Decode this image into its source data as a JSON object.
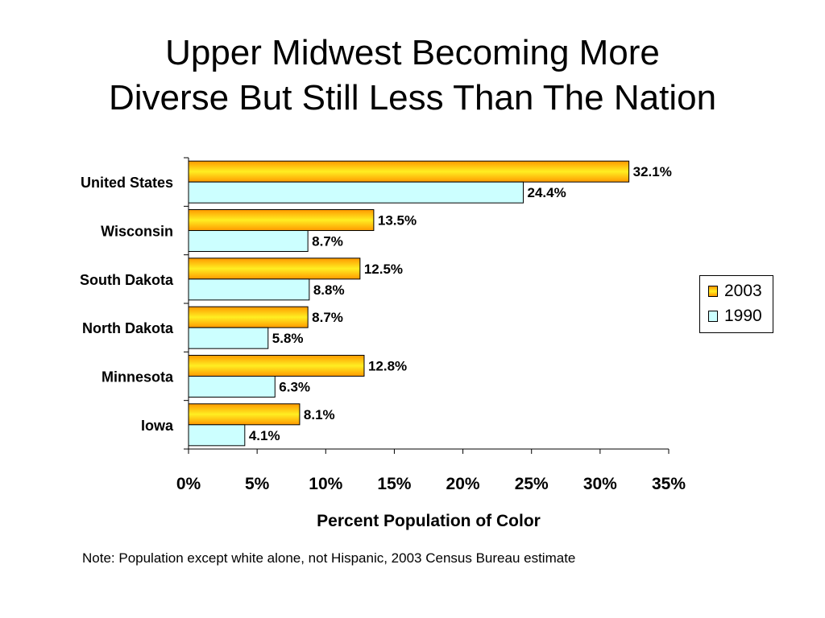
{
  "title_line1": "Upper Midwest Becoming More",
  "title_line2": "Diverse But Still Less Than The Nation",
  "note": "Note: Population except white alone, not Hispanic, 2003 Census Bureau estimate",
  "colors": {
    "series_2003": "#ff9900",
    "series_2003_highlight": "#ffee22",
    "series_1990": "#ccffff"
  },
  "chart_data": {
    "type": "bar",
    "orientation": "horizontal",
    "title": "Upper Midwest Becoming More Diverse But Still Less Than The Nation",
    "xlabel": "Percent Population of Color",
    "ylabel": "",
    "xlim": [
      0,
      35
    ],
    "x_ticks": [
      "0%",
      "5%",
      "10%",
      "15%",
      "20%",
      "25%",
      "30%",
      "35%"
    ],
    "tick_values": [
      0,
      5,
      10,
      15,
      20,
      25,
      30,
      35
    ],
    "categories": [
      "United States",
      "Wisconsin",
      "South Dakota",
      "North Dakota",
      "Minnesota",
      "Iowa"
    ],
    "series": [
      {
        "name": "2003",
        "values": [
          32.1,
          13.5,
          12.5,
          8.7,
          12.8,
          8.1
        ],
        "labels": [
          "32.1%",
          "13.5%",
          "12.5%",
          "8.7%",
          "12.8%",
          "8.1%"
        ]
      },
      {
        "name": "1990",
        "values": [
          24.4,
          8.7,
          8.8,
          5.8,
          6.3,
          4.1
        ],
        "labels": [
          "24.4%",
          "8.7%",
          "8.8%",
          "5.8%",
          "6.3%",
          "4.1%"
        ]
      }
    ],
    "grid": false,
    "legend_position": "right"
  }
}
